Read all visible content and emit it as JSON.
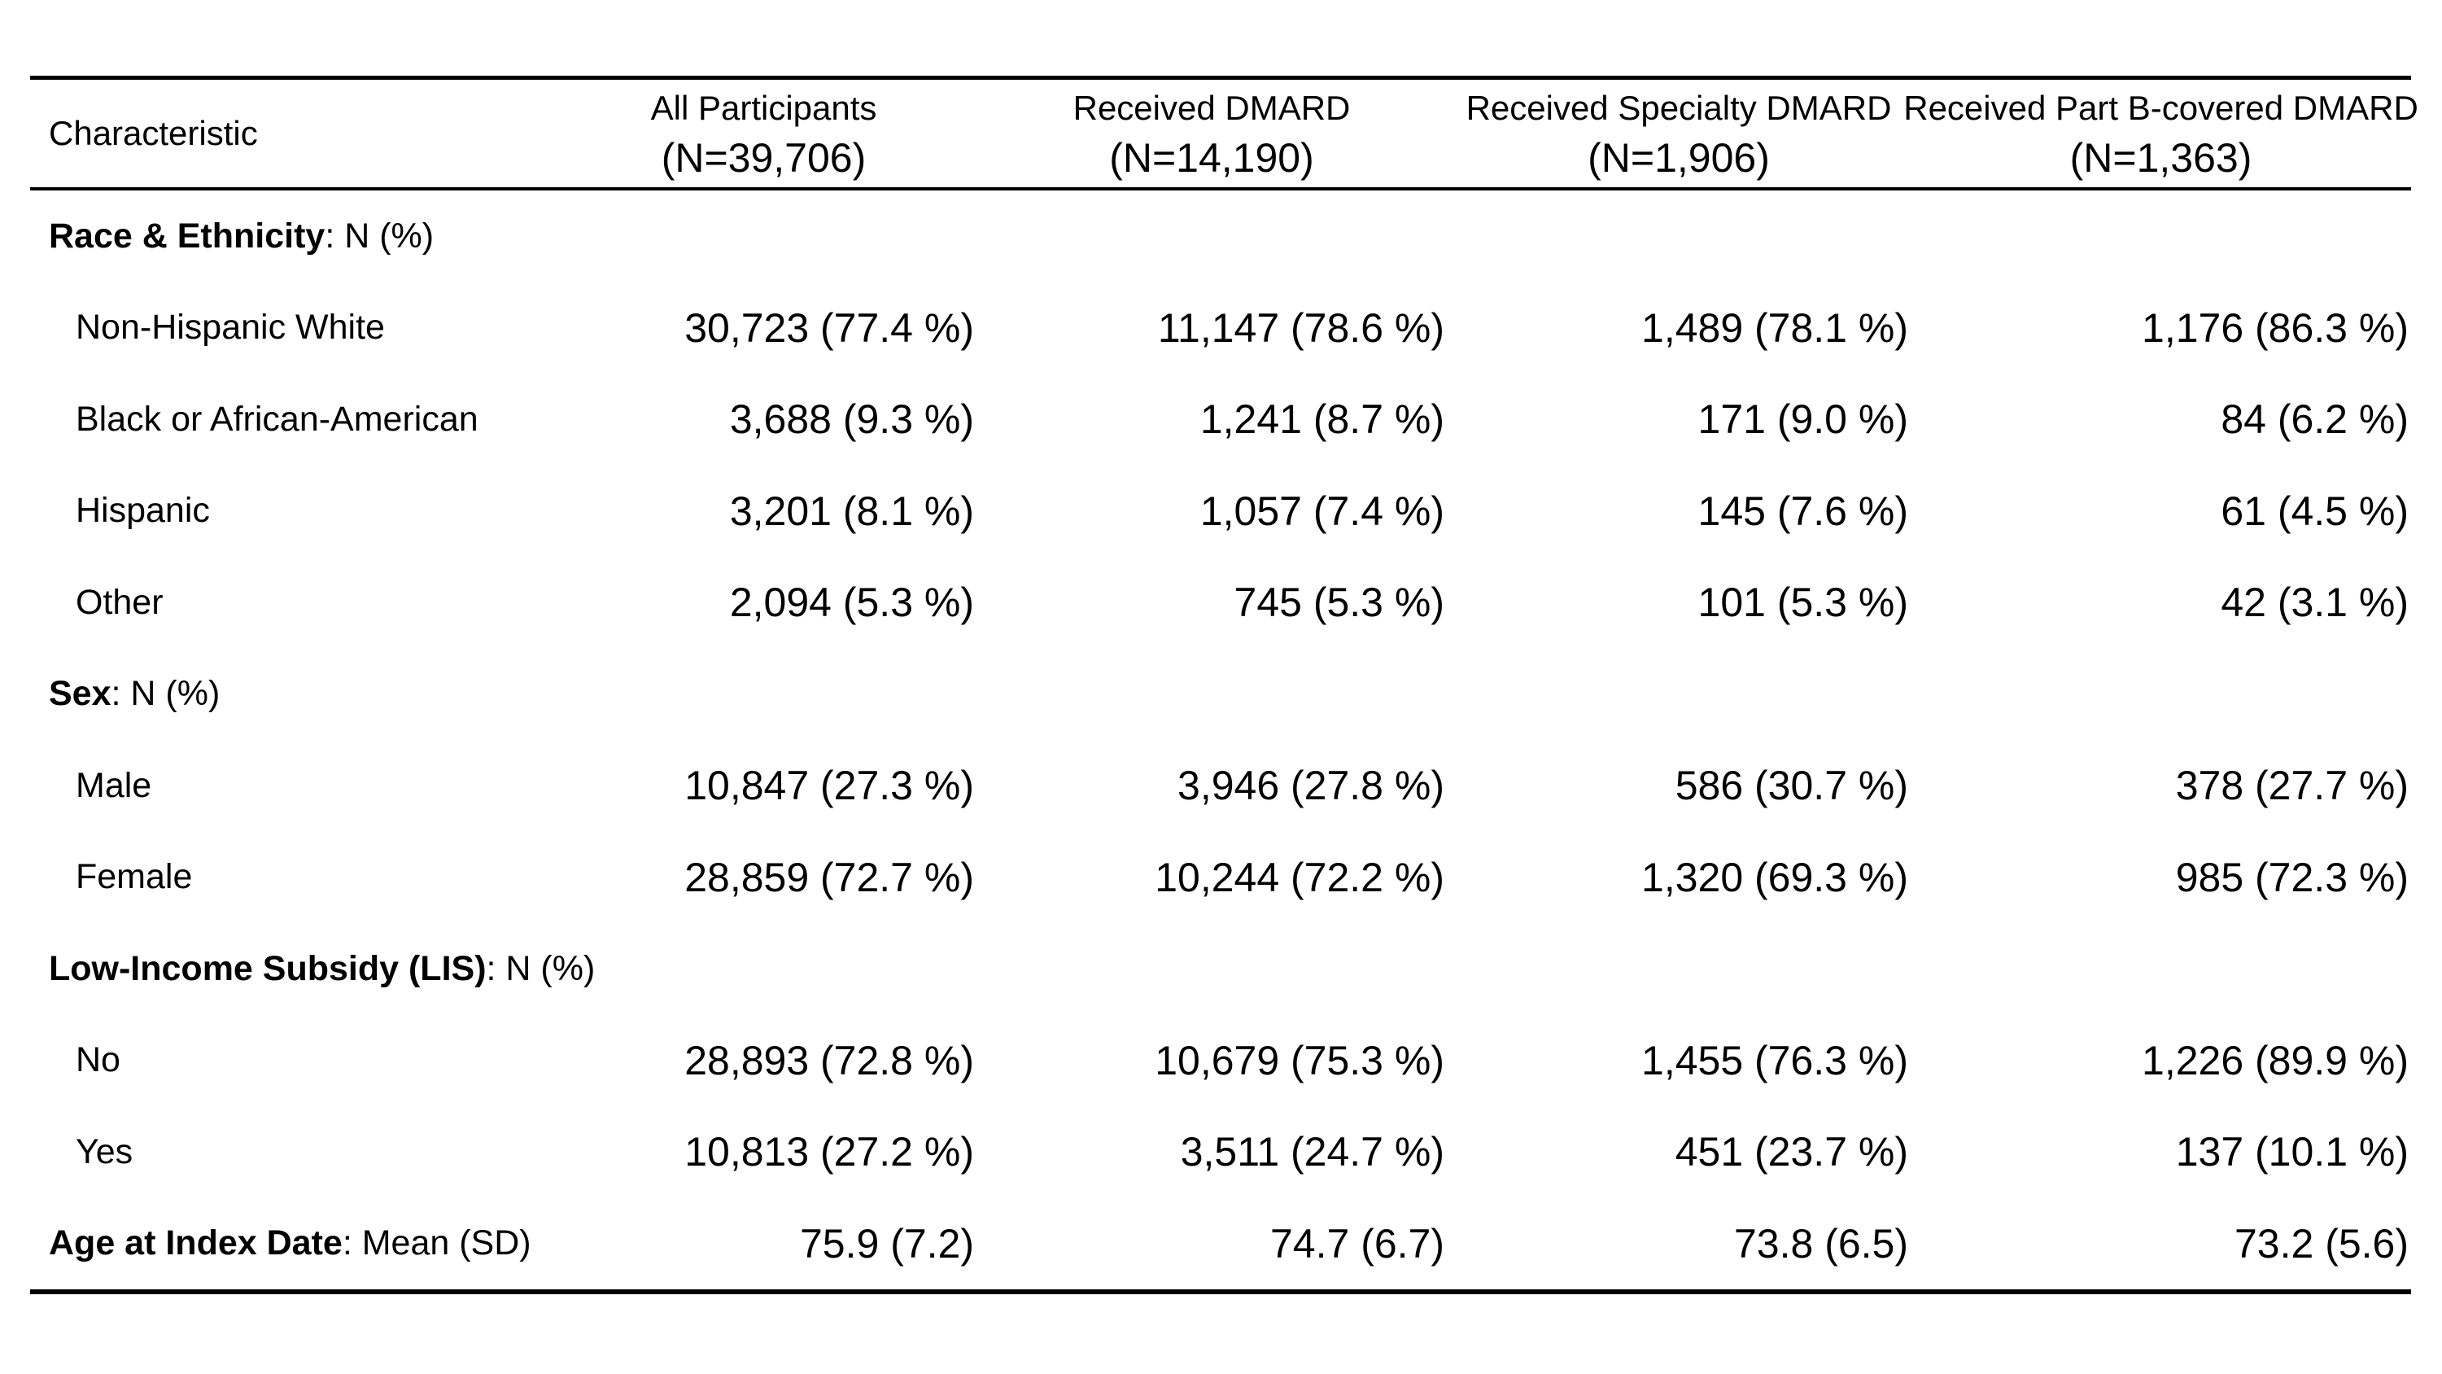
{
  "colors": {
    "background": "#ffffff",
    "text": "#000000",
    "rule": "#000000"
  },
  "table": {
    "name": "participant-characteristics-table",
    "columns": [
      {
        "label": "Characteristic",
        "sublabel": ""
      },
      {
        "label": "All Participants",
        "sublabel": "(N=39,706)"
      },
      {
        "label": "Received DMARD",
        "sublabel": "(N=14,190)"
      },
      {
        "label": "Received Specialty DMARD",
        "sublabel": "(N=1,906)"
      },
      {
        "label": "Received Part B-covered DMARD",
        "sublabel": "(N=1,363)"
      }
    ],
    "rows": [
      {
        "type": "section",
        "label_bold": "Race & Ethnicity",
        "label_rest": ": N (%)",
        "values": [
          "",
          "",
          "",
          ""
        ]
      },
      {
        "type": "data",
        "label": "Non-Hispanic White",
        "values": [
          "30,723 (77.4 %)",
          "11,147 (78.6 %)",
          "1,489 (78.1 %)",
          "1,176 (86.3 %)"
        ]
      },
      {
        "type": "data",
        "label": "Black or African-American",
        "values": [
          "3,688 (9.3 %)",
          "1,241 (8.7 %)",
          "171 (9.0 %)",
          "84 (6.2 %)"
        ]
      },
      {
        "type": "data",
        "label": "Hispanic",
        "values": [
          "3,201 (8.1 %)",
          "1,057 (7.4 %)",
          "145 (7.6 %)",
          "61 (4.5 %)"
        ]
      },
      {
        "type": "data",
        "label": "Other",
        "values": [
          "2,094 (5.3 %)",
          "745 (5.3 %)",
          "101 (5.3 %)",
          "42 (3.1 %)"
        ]
      },
      {
        "type": "section",
        "label_bold": "Sex",
        "label_rest": ": N (%)",
        "values": [
          "",
          "",
          "",
          ""
        ]
      },
      {
        "type": "data",
        "label": "Male",
        "values": [
          "10,847 (27.3 %)",
          "3,946 (27.8 %)",
          "586 (30.7 %)",
          "378 (27.7 %)"
        ]
      },
      {
        "type": "data",
        "label": "Female",
        "values": [
          "28,859 (72.7 %)",
          "10,244 (72.2 %)",
          "1,320 (69.3 %)",
          "985 (72.3 %)"
        ]
      },
      {
        "type": "section",
        "label_bold": "Low-Income Subsidy (LIS)",
        "label_rest": ": N (%)",
        "values": [
          "",
          "",
          "",
          ""
        ]
      },
      {
        "type": "data",
        "label": "No",
        "values": [
          "28,893 (72.8 %)",
          "10,679 (75.3 %)",
          "1,455 (76.3 %)",
          "1,226 (89.9 %)"
        ]
      },
      {
        "type": "data",
        "label": "Yes",
        "values": [
          "10,813 (27.2 %)",
          "3,511 (24.7 %)",
          "451 (23.7 %)",
          "137 (10.1 %)"
        ]
      },
      {
        "type": "section-data",
        "label_bold": "Age at Index Date",
        "label_rest": ": Mean (SD)",
        "values": [
          "75.9 (7.2)",
          "74.7 (6.7)",
          "73.8 (6.5)",
          "73.2 (5.6)"
        ]
      }
    ]
  }
}
